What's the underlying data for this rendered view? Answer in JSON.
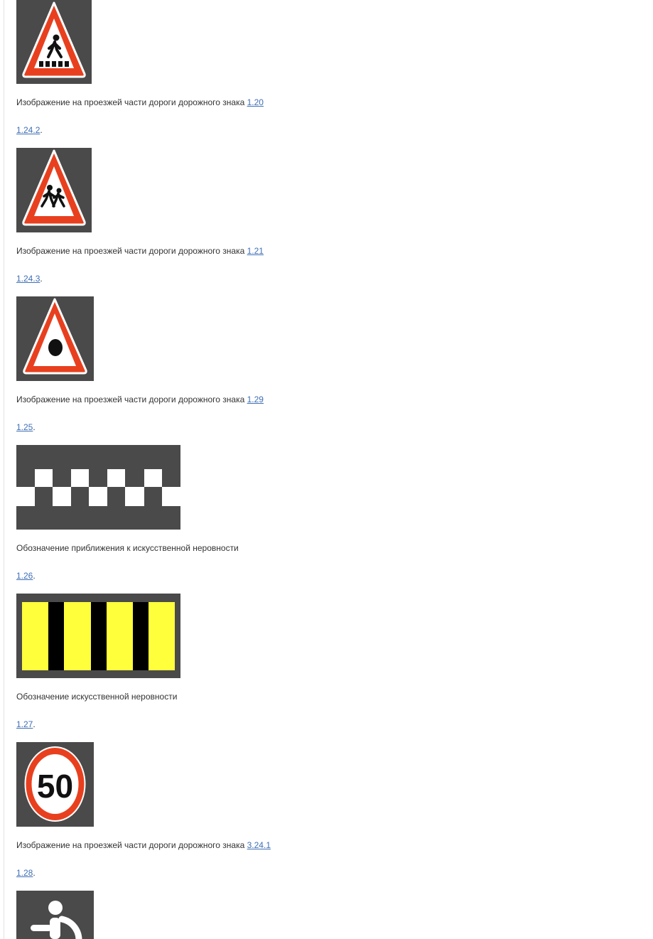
{
  "entries": [
    {
      "image_icon": "pedestrian-crossing-sign-icon",
      "caption_text": "Изображение на проезжей части дороги дорожного знака ",
      "caption_link": "1.20"
    },
    {
      "section_id": "1.24.2",
      "image_icon": "children-sign-icon",
      "caption_text": "Изображение на проезжей части дороги дорожного знака ",
      "caption_link": "1.21"
    },
    {
      "section_id": "1.24.3",
      "image_icon": "dot-warning-sign-icon",
      "caption_text": "Изображение на проезжей части дороги дорожного знака ",
      "caption_link": "1.29"
    },
    {
      "section_id": "1.25",
      "image_icon": "checkered-marking-icon",
      "caption_text": "Обозначение приближения к искусственной неровности",
      "caption_link": ""
    },
    {
      "section_id": "1.26",
      "image_icon": "yellow-black-stripes-marking-icon",
      "caption_text": "Обозначение искусственной неровности",
      "caption_link": ""
    },
    {
      "section_id": "1.27",
      "image_icon": "speed-limit-sign-icon",
      "speed_limit_value": "50",
      "caption_text": "Изображение на проезжей части дороги дорожного знака ",
      "caption_link": "3.24.1"
    },
    {
      "section_id": "1.28",
      "image_icon": "disabled-person-marking-icon"
    }
  ],
  "colors": {
    "image_background": "#4a4a4a",
    "sign_red": "#e8401f",
    "link": "#3f6fb5",
    "marking_yellow": "#ffff3c"
  }
}
